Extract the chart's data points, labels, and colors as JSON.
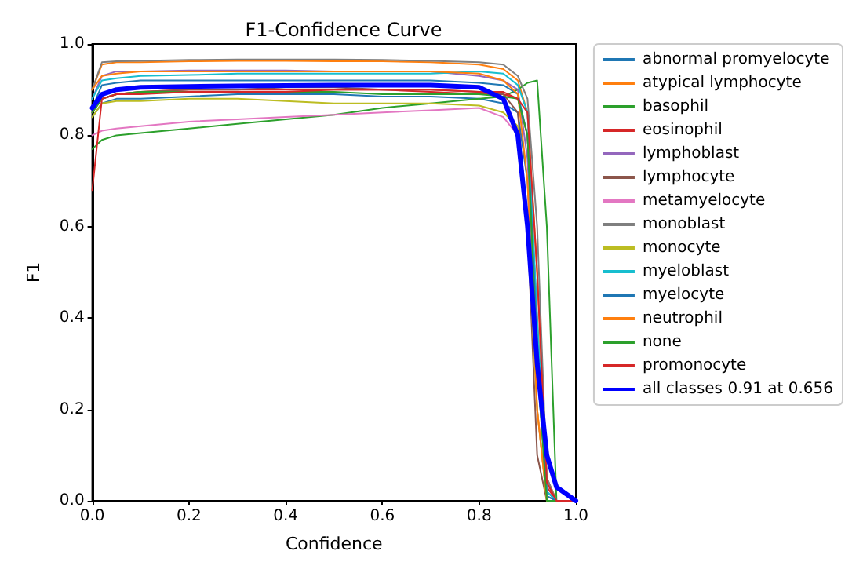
{
  "chart_data": {
    "type": "line",
    "title": "F1-Confidence Curve",
    "xlabel": "Confidence",
    "ylabel": "F1",
    "x": [
      0,
      0.02,
      0.05,
      0.1,
      0.2,
      0.3,
      0.4,
      0.5,
      0.6,
      0.7,
      0.8,
      0.85,
      0.88,
      0.9,
      0.92,
      0.94,
      0.96,
      1.0
    ],
    "xlim": [
      0,
      1
    ],
    "ylim": [
      0,
      1
    ],
    "xticks": [
      {
        "value": 0,
        "label": "0.0"
      },
      0.2,
      0.4,
      0.6,
      0.8,
      {
        "value": 1,
        "label": "1.0"
      }
    ],
    "yticks": [
      {
        "value": 0,
        "label": "0.0"
      },
      0.2,
      0.4,
      0.6,
      0.8,
      {
        "value": 1,
        "label": "1.0"
      }
    ],
    "grid": false,
    "legend": "right",
    "marker": "none",
    "line_style": "solid",
    "series": [
      {
        "name": "abnormal promyelocyte",
        "color": "#1f77b4",
        "values": [
          0.84,
          0.87,
          0.88,
          0.88,
          0.885,
          0.89,
          0.89,
          0.89,
          0.885,
          0.885,
          0.88,
          0.87,
          0.85,
          0.7,
          0.3,
          0.02,
          0,
          0
        ]
      },
      {
        "name": "atypical lymphocyte",
        "color": "#ff7f0e",
        "values": [
          0.9,
          0.955,
          0.96,
          0.96,
          0.962,
          0.963,
          0.963,
          0.962,
          0.962,
          0.96,
          0.955,
          0.945,
          0.92,
          0.85,
          0.5,
          0.05,
          0,
          0
        ]
      },
      {
        "name": "basophil",
        "color": "#2ca02c",
        "values": [
          0.77,
          0.79,
          0.8,
          0.805,
          0.815,
          0.825,
          0.835,
          0.845,
          0.86,
          0.87,
          0.88,
          0.885,
          0.9,
          0.915,
          0.92,
          0.6,
          0,
          0
        ]
      },
      {
        "name": "eosinophil",
        "color": "#d62728",
        "values": [
          0.86,
          0.88,
          0.89,
          0.895,
          0.9,
          0.9,
          0.9,
          0.9,
          0.9,
          0.895,
          0.89,
          0.89,
          0.88,
          0.8,
          0.4,
          0.03,
          0,
          0
        ]
      },
      {
        "name": "lymphoblast",
        "color": "#9467bd",
        "values": [
          0.88,
          0.93,
          0.94,
          0.94,
          0.942,
          0.942,
          0.942,
          0.94,
          0.94,
          0.94,
          0.93,
          0.92,
          0.9,
          0.75,
          0.3,
          0.01,
          0,
          0
        ]
      },
      {
        "name": "lymphocyte",
        "color": "#8c564b",
        "values": [
          0.85,
          0.88,
          0.89,
          0.895,
          0.9,
          0.9,
          0.905,
          0.905,
          0.9,
          0.9,
          0.895,
          0.89,
          0.85,
          0.6,
          0.1,
          0,
          0,
          0
        ]
      },
      {
        "name": "metamyelocyte",
        "color": "#e377c2",
        "values": [
          0.8,
          0.81,
          0.815,
          0.82,
          0.83,
          0.835,
          0.84,
          0.845,
          0.85,
          0.855,
          0.86,
          0.84,
          0.8,
          0.6,
          0.2,
          0,
          0,
          0
        ]
      },
      {
        "name": "monoblast",
        "color": "#7f7f7f",
        "values": [
          0.9,
          0.96,
          0.962,
          0.963,
          0.965,
          0.966,
          0.966,
          0.966,
          0.965,
          0.963,
          0.96,
          0.955,
          0.93,
          0.88,
          0.6,
          0.05,
          0,
          0
        ]
      },
      {
        "name": "monocyte",
        "color": "#bcbd22",
        "values": [
          0.84,
          0.87,
          0.875,
          0.875,
          0.88,
          0.88,
          0.875,
          0.87,
          0.87,
          0.87,
          0.865,
          0.85,
          0.82,
          0.6,
          0.2,
          0,
          0,
          0
        ]
      },
      {
        "name": "myeloblast",
        "color": "#17becf",
        "values": [
          0.88,
          0.92,
          0.925,
          0.93,
          0.932,
          0.935,
          0.935,
          0.935,
          0.935,
          0.935,
          0.94,
          0.935,
          0.91,
          0.85,
          0.4,
          0.02,
          0,
          0
        ]
      },
      {
        "name": "myelocyte",
        "color": "#1f77b4",
        "values": [
          0.86,
          0.91,
          0.915,
          0.92,
          0.92,
          0.92,
          0.92,
          0.92,
          0.92,
          0.92,
          0.915,
          0.91,
          0.89,
          0.8,
          0.35,
          0.01,
          0,
          0
        ]
      },
      {
        "name": "neutrophil",
        "color": "#ff7f0e",
        "values": [
          0.9,
          0.93,
          0.935,
          0.94,
          0.94,
          0.94,
          0.94,
          0.94,
          0.94,
          0.94,
          0.935,
          0.92,
          0.89,
          0.7,
          0.2,
          0,
          0,
          0
        ]
      },
      {
        "name": "none",
        "color": "#2ca02c",
        "values": [
          0.85,
          0.88,
          0.89,
          0.895,
          0.895,
          0.895,
          0.895,
          0.895,
          0.89,
          0.89,
          0.89,
          0.885,
          0.88,
          0.8,
          0.3,
          0,
          0,
          0
        ]
      },
      {
        "name": "promonocyte",
        "color": "#d62728",
        "values": [
          0.68,
          0.88,
          0.89,
          0.89,
          0.895,
          0.895,
          0.895,
          0.9,
          0.9,
          0.9,
          0.895,
          0.895,
          0.88,
          0.85,
          0.5,
          0.04,
          0,
          0
        ]
      },
      {
        "name": "all classes 0.91 at 0.656",
        "color": "#0000ff",
        "values": [
          0.86,
          0.89,
          0.9,
          0.905,
          0.907,
          0.908,
          0.909,
          0.91,
          0.91,
          0.91,
          0.905,
          0.88,
          0.8,
          0.6,
          0.3,
          0.1,
          0.03,
          0
        ]
      }
    ]
  }
}
